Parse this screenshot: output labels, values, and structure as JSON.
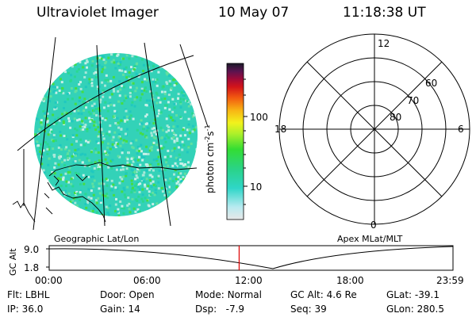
{
  "header": {
    "instrument": "Ultraviolet Imager",
    "date": "10 May 07",
    "time": "11:18:38 UT"
  },
  "panels": {
    "left_label": "Geographic Lat/Lon",
    "right_label": "Apex MLat/MLT"
  },
  "colorbar": {
    "unit_label": "photon cm",
    "unit_sup1": "-2",
    "unit_mid": "s",
    "unit_sup2": "-1",
    "tick_100": "100",
    "tick_10": "10"
  },
  "polar_plot": {
    "mlt_top": "12",
    "mlt_left": "18",
    "mlt_right": "6",
    "mlt_bottom": "0",
    "lat_60": "60",
    "lat_70": "70",
    "lat_80": "80"
  },
  "timeline": {
    "ylabel": "GC Alt",
    "ytick_high": "9.0",
    "ytick_low": "1.8",
    "xticks": [
      "00:00",
      "06:00",
      "12:00",
      "18:00",
      "23:59"
    ],
    "current_time_fraction": 0.4704
  },
  "status": {
    "flt_label": "Flt:",
    "flt_value": "LBHL",
    "ip_label": "IP:",
    "ip_value": "36.0",
    "door_label": "Door:",
    "door_value": "Open",
    "gain_label": "Gain:",
    "gain_value": "14",
    "mode_label": "Mode:",
    "mode_value": "Normal",
    "dsp_label": "Dsp:",
    "dsp_value": "-7.9",
    "gcalt_label": "GC Alt:",
    "gcalt_value": "4.6 Re",
    "seq_label": "Seq:",
    "seq_value": "39",
    "glat_label": "GLat:",
    "glat_value": "-39.1",
    "glon_label": "GLon:",
    "glon_value": "280.5"
  },
  "colors": {
    "speckle_base": "#33d2b8",
    "speckle_light": "#a8e8d8",
    "speckle_green": "#44dd44",
    "marker": "#dd0000"
  }
}
